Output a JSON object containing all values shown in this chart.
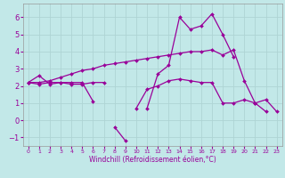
{
  "background_color": "#c2e8e8",
  "grid_color": "#aed4d4",
  "line_color": "#990099",
  "xlabel": "Windchill (Refroidissement éolien,°C)",
  "x_hours": [
    0,
    1,
    2,
    3,
    4,
    5,
    6,
    7,
    8,
    9,
    10,
    11,
    12,
    13,
    14,
    15,
    16,
    17,
    18,
    19,
    20,
    21,
    22,
    23
  ],
  "series1": [
    2.2,
    2.6,
    2.1,
    2.2,
    2.2,
    2.2,
    1.1,
    null,
    -0.4,
    -1.2,
    null,
    0.7,
    2.7,
    3.2,
    6.0,
    5.3,
    5.5,
    6.2,
    5.0,
    3.7,
    null,
    null,
    null,
    null
  ],
  "series2": [
    2.2,
    2.1,
    2.2,
    2.2,
    2.1,
    2.1,
    2.2,
    2.2,
    null,
    null,
    0.7,
    1.8,
    2.0,
    2.3,
    2.4,
    2.3,
    2.2,
    2.2,
    1.0,
    1.0,
    1.2,
    1.0,
    0.5,
    null
  ],
  "series3": [
    2.2,
    2.2,
    2.3,
    2.5,
    2.7,
    2.9,
    3.0,
    3.2,
    3.3,
    3.4,
    3.5,
    3.6,
    3.7,
    3.8,
    3.9,
    4.0,
    4.0,
    4.1,
    3.8,
    4.1,
    2.3,
    1.0,
    1.2,
    0.5
  ],
  "ylim": [
    -1.5,
    6.8
  ],
  "yticks": [
    -1,
    0,
    1,
    2,
    3,
    4,
    5,
    6
  ],
  "xticks": [
    0,
    1,
    2,
    3,
    4,
    5,
    6,
    7,
    8,
    9,
    10,
    11,
    12,
    13,
    14,
    15,
    16,
    17,
    18,
    19,
    20,
    21,
    22,
    23
  ]
}
